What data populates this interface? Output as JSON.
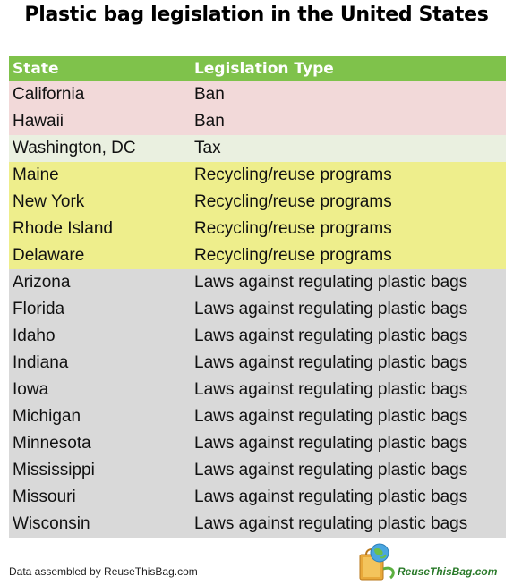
{
  "title": "Plastic bag legislation in the United States",
  "table": {
    "headers": {
      "state": "State",
      "type": "Legislation Type"
    },
    "rows": [
      {
        "state": "California",
        "type": "Ban",
        "category": "ban"
      },
      {
        "state": "Hawaii",
        "type": "Ban",
        "category": "ban"
      },
      {
        "state": "Washington, DC",
        "type": "Tax",
        "category": "tax"
      },
      {
        "state": "Maine",
        "type": "Recycling/reuse programs",
        "category": "recycling"
      },
      {
        "state": "New York",
        "type": "Recycling/reuse programs",
        "category": "recycling"
      },
      {
        "state": "Rhode Island",
        "type": "Recycling/reuse programs",
        "category": "recycling"
      },
      {
        "state": "Delaware",
        "type": "Recycling/reuse programs",
        "category": "recycling"
      },
      {
        "state": "Arizona",
        "type": "Laws against regulating plastic bags",
        "category": "against"
      },
      {
        "state": "Florida",
        "type": "Laws against regulating plastic bags",
        "category": "against"
      },
      {
        "state": "Idaho",
        "type": "Laws against regulating plastic bags",
        "category": "against"
      },
      {
        "state": "Indiana",
        "type": "Laws against regulating plastic bags",
        "category": "against"
      },
      {
        "state": "Iowa",
        "type": "Laws against regulating plastic bags",
        "category": "against"
      },
      {
        "state": "Michigan",
        "type": "Laws against regulating plastic bags",
        "category": "against"
      },
      {
        "state": "Minnesota",
        "type": "Laws against regulating plastic bags",
        "category": "against"
      },
      {
        "state": "Mississippi",
        "type": "Laws against regulating plastic bags",
        "category": "against"
      },
      {
        "state": "Missouri",
        "type": "Laws against regulating plastic bags",
        "category": "against"
      },
      {
        "state": "Wisconsin",
        "type": "Laws against regulating plastic bags",
        "category": "against"
      }
    ]
  },
  "colors": {
    "header": "#7fc24b",
    "ban": "#f2d9d9",
    "tax": "#eaf0e0",
    "recycling": "#eeee8c",
    "against": "#d9d9d9"
  },
  "footer": {
    "credit": "Data assembled by ReuseThisBag.com",
    "logo_text": "ReuseThisBag.com",
    "logo_icon": "globe-bag-logo-icon"
  }
}
